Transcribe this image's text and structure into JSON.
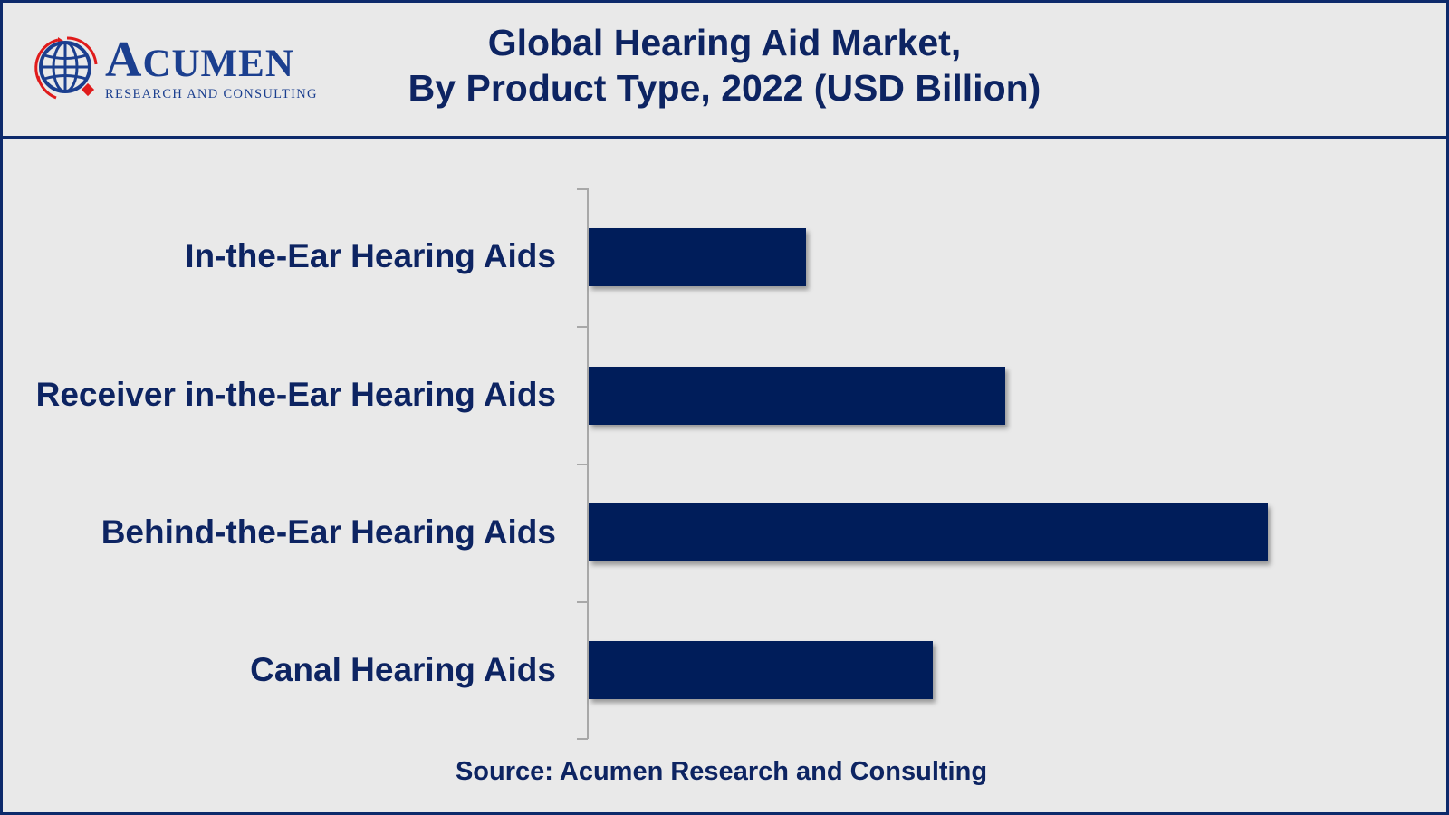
{
  "logo": {
    "word_initial": "A",
    "word_rest": "CUMEN",
    "subtitle": "RESEARCH AND CONSULTING"
  },
  "colors": {
    "bar": "#001d5a",
    "text": "#0d2462",
    "border": "#0d2a6b",
    "background": "#e9e9e9",
    "logo_blue": "#1b3f8f",
    "logo_red": "#e01b1b"
  },
  "chart_data": {
    "type": "bar",
    "orientation": "horizontal",
    "title": "Global Hearing Aid Market, By Product Type, 2022 (USD Billion)",
    "title_lines": [
      "Global Hearing Aid Market,",
      "By Product Type, 2022 (USD Billion)"
    ],
    "categories": [
      "In-the-Ear Hearing Aids",
      "Receiver in-the-Ear Hearing Aids",
      "Behind-the-Ear Hearing Aids",
      "Canal Hearing Aids"
    ],
    "values": [
      2.4,
      4.6,
      7.5,
      3.8
    ],
    "values_note": "relative bar lengths; no value axis or data labels shown",
    "xlabel": "",
    "ylabel": "",
    "xlim": [
      0,
      8
    ],
    "grid": false,
    "legend": null,
    "source": "Source: Acumen Research and Consulting"
  }
}
